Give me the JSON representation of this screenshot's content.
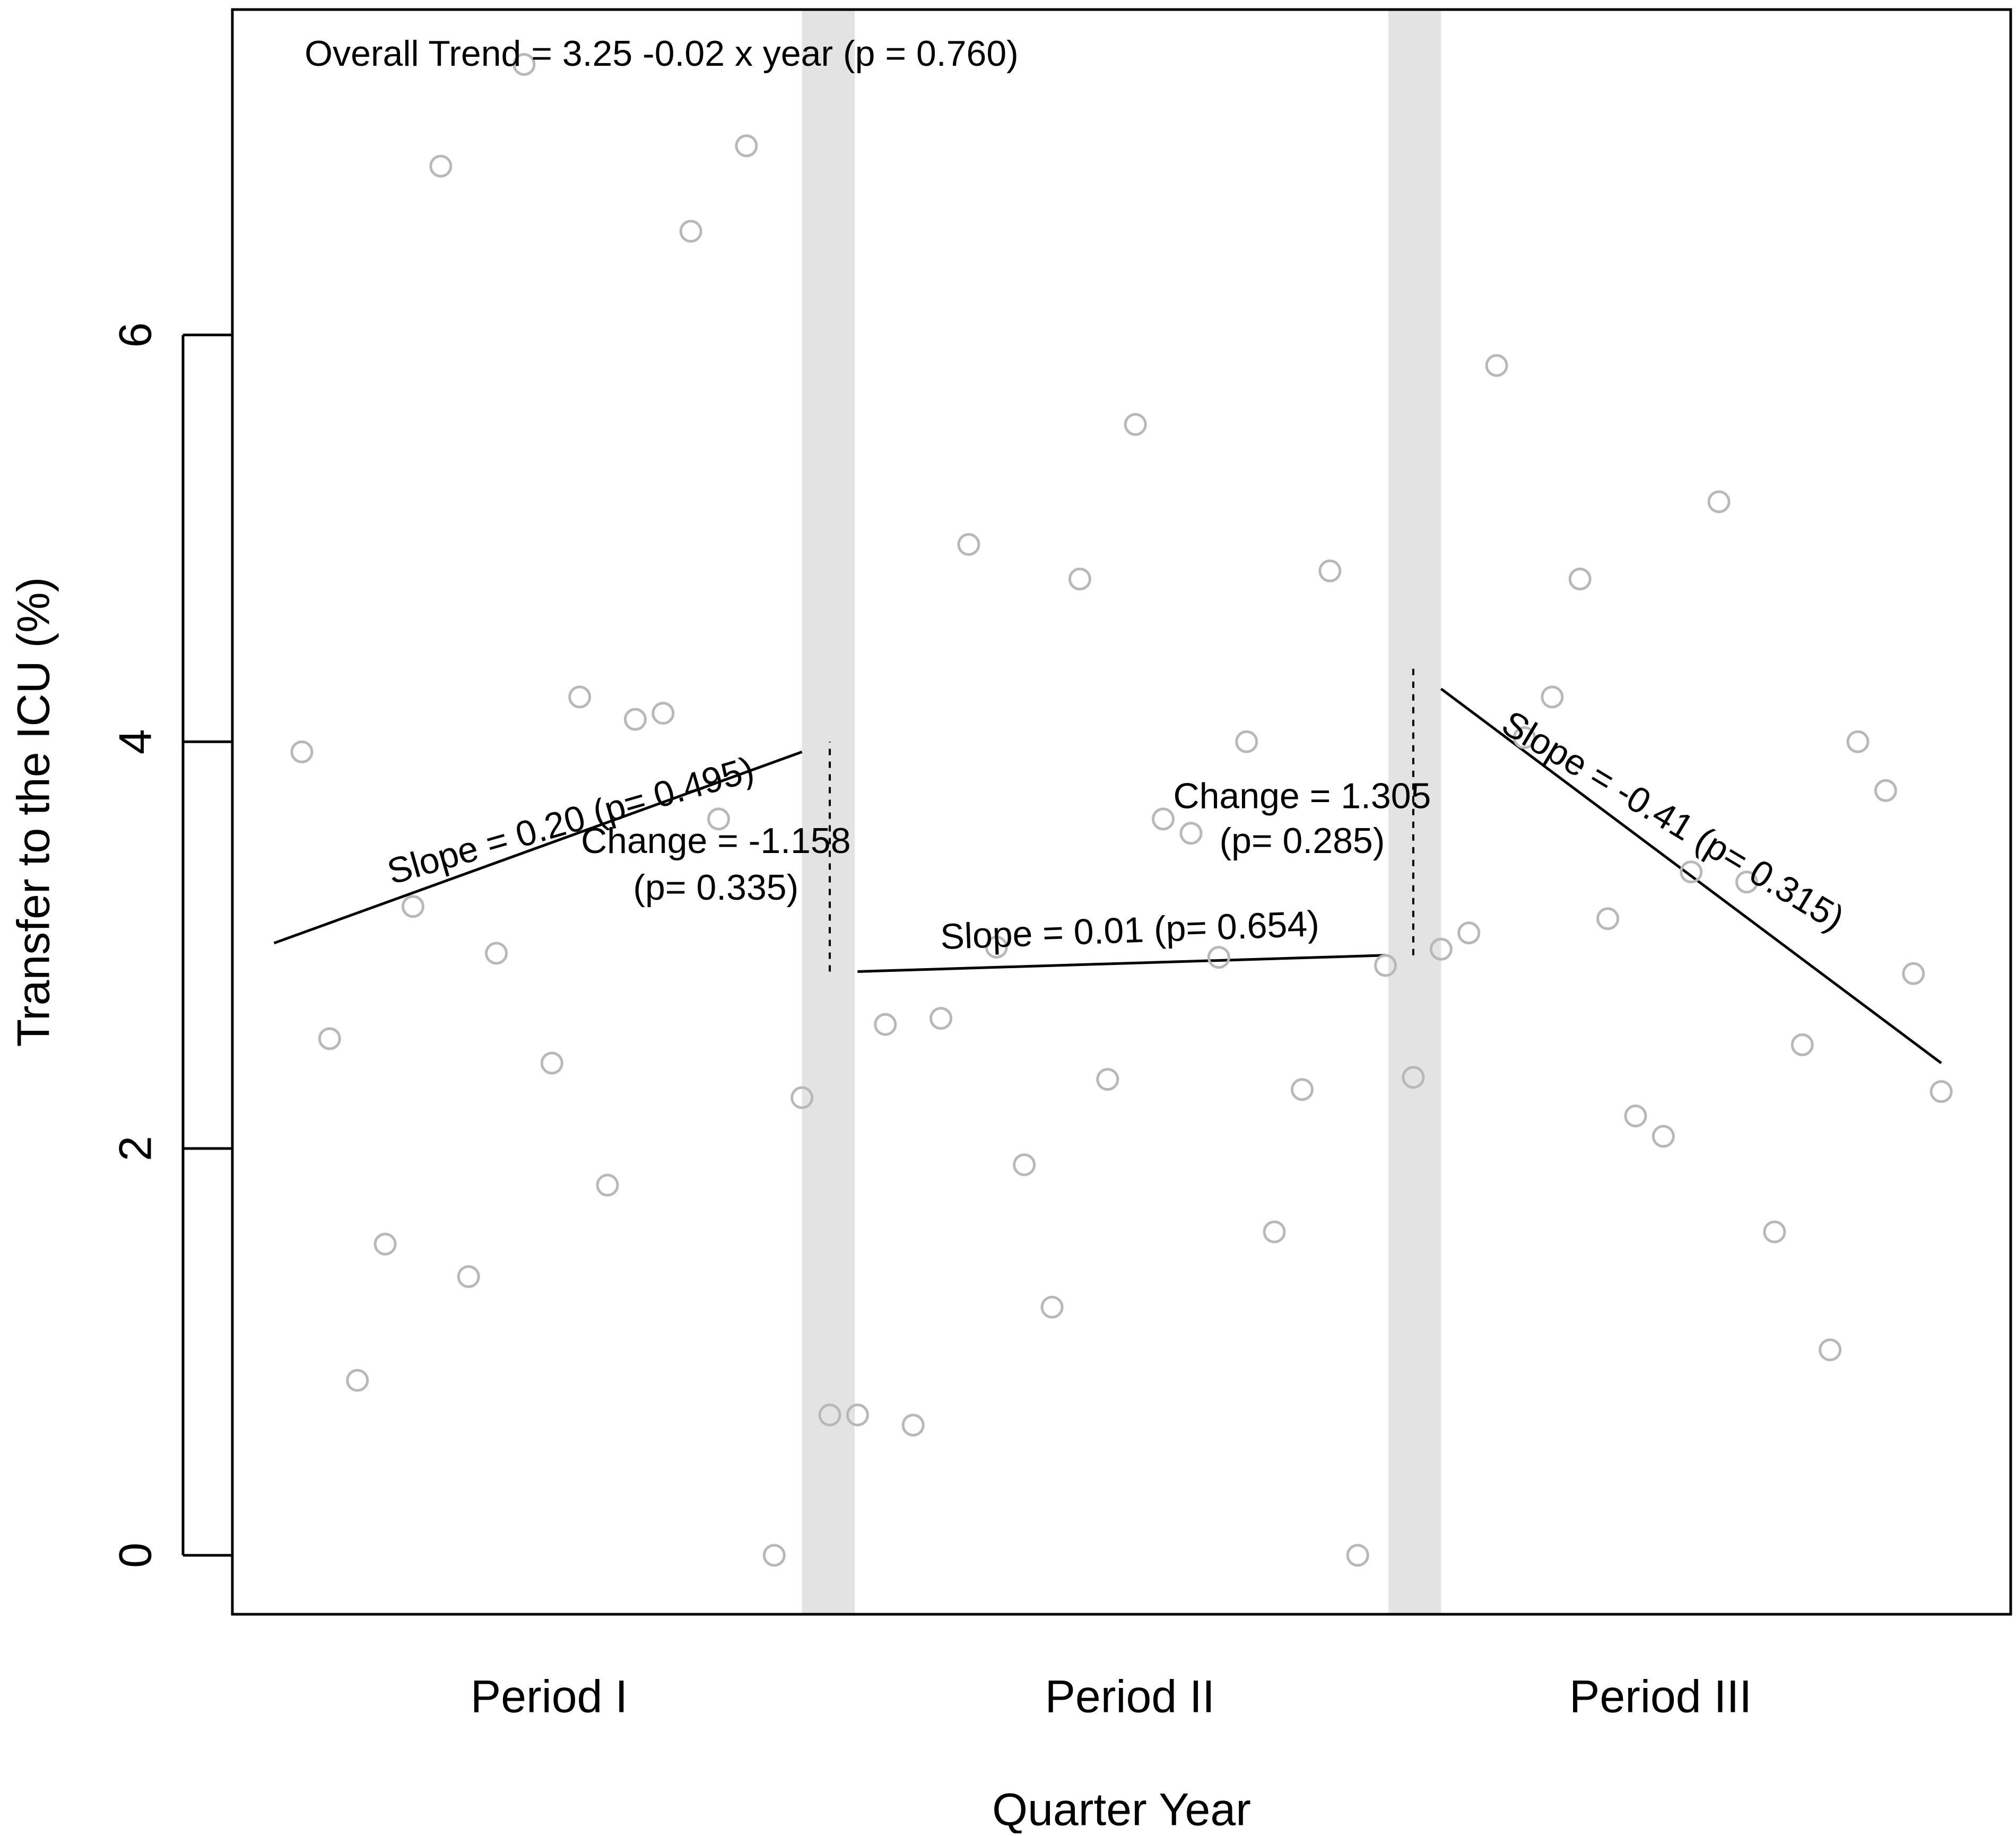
{
  "chart_data": {
    "type": "scatter",
    "xlabel": "Quarter Year",
    "ylabel": "Transfer to the ICU (%)",
    "ylim": [
      -0.29,
      7.6
    ],
    "yticks": [
      0,
      2,
      4,
      6
    ],
    "xlim": [
      0.5,
      64.5
    ],
    "x_axis_labels": [
      {
        "label": "Period I",
        "x": 11.9
      },
      {
        "label": "Period II",
        "x": 32.8
      },
      {
        "label": "Period III",
        "x": 51.9
      }
    ],
    "phase_bands": [
      {
        "x_start": 21.0,
        "x_end": 22.9
      },
      {
        "x_start": 42.1,
        "x_end": 44.0
      }
    ],
    "points": [
      {
        "x": 3,
        "y": 3.95
      },
      {
        "x": 4,
        "y": 2.54
      },
      {
        "x": 5,
        "y": 0.86
      },
      {
        "x": 6,
        "y": 1.53
      },
      {
        "x": 7,
        "y": 3.19
      },
      {
        "x": 8,
        "y": 6.83
      },
      {
        "x": 9,
        "y": 1.37
      },
      {
        "x": 10,
        "y": 2.96
      },
      {
        "x": 11,
        "y": 7.33
      },
      {
        "x": 12,
        "y": 2.42
      },
      {
        "x": 13,
        "y": 4.22
      },
      {
        "x": 14,
        "y": 1.82
      },
      {
        "x": 15,
        "y": 4.11
      },
      {
        "x": 16,
        "y": 4.14
      },
      {
        "x": 17,
        "y": 6.51
      },
      {
        "x": 18,
        "y": 3.62
      },
      {
        "x": 19,
        "y": 6.93
      },
      {
        "x": 20,
        "y": 0.0
      },
      {
        "x": 21,
        "y": 2.25
      },
      {
        "x": 22,
        "y": 0.69
      },
      {
        "x": 23,
        "y": 0.69
      },
      {
        "x": 24,
        "y": 2.61
      },
      {
        "x": 25,
        "y": 0.64
      },
      {
        "x": 26,
        "y": 2.64
      },
      {
        "x": 27,
        "y": 4.97
      },
      {
        "x": 28,
        "y": 2.99
      },
      {
        "x": 29,
        "y": 1.92
      },
      {
        "x": 30,
        "y": 1.22
      },
      {
        "x": 31,
        "y": 4.8
      },
      {
        "x": 32,
        "y": 2.34
      },
      {
        "x": 33,
        "y": 5.56
      },
      {
        "x": 34,
        "y": 3.62
      },
      {
        "x": 35,
        "y": 3.55
      },
      {
        "x": 36,
        "y": 2.94
      },
      {
        "x": 37,
        "y": 4.0
      },
      {
        "x": 38,
        "y": 1.59
      },
      {
        "x": 39,
        "y": 2.29
      },
      {
        "x": 40,
        "y": 4.84
      },
      {
        "x": 41,
        "y": 0.0
      },
      {
        "x": 42,
        "y": 2.9
      },
      {
        "x": 43,
        "y": 2.35
      },
      {
        "x": 44,
        "y": 2.98
      },
      {
        "x": 45,
        "y": 3.06
      },
      {
        "x": 46,
        "y": 5.85
      },
      {
        "x": 47,
        "y": 4.02
      },
      {
        "x": 48,
        "y": 4.22
      },
      {
        "x": 49,
        "y": 4.8
      },
      {
        "x": 50,
        "y": 3.13
      },
      {
        "x": 51,
        "y": 2.16
      },
      {
        "x": 52,
        "y": 2.06
      },
      {
        "x": 53,
        "y": 3.36
      },
      {
        "x": 54,
        "y": 5.18
      },
      {
        "x": 55,
        "y": 3.31
      },
      {
        "x": 56,
        "y": 1.59
      },
      {
        "x": 57,
        "y": 2.51
      },
      {
        "x": 58,
        "y": 1.01
      },
      {
        "x": 59,
        "y": 4.0
      },
      {
        "x": 60,
        "y": 3.76
      },
      {
        "x": 61,
        "y": 2.86
      },
      {
        "x": 62,
        "y": 2.28
      }
    ],
    "trend_lines": [
      {
        "x0": 2.0,
        "y0": 3.01,
        "x1": 21.0,
        "y1": 3.95
      },
      {
        "x0": 23.0,
        "y0": 2.87,
        "x1": 42.0,
        "y1": 2.95
      },
      {
        "x0": 44.0,
        "y0": 4.26,
        "x1": 62.0,
        "y1": 2.42
      }
    ],
    "change_markers": [
      {
        "x": 22,
        "y0": 2.87,
        "y1": 4.0
      },
      {
        "x": 43,
        "y0": 2.95,
        "y1": 4.39
      }
    ],
    "annotations": [
      {
        "text": "Overall Trend = 3.25 -0.02 x year (p = 0.760)",
        "x": 3.1,
        "y": 7.37,
        "angle": 0,
        "anchor": "start"
      },
      {
        "text": "Slope = 0.20 (p= 0.495)",
        "x": 12.7,
        "y": 3.6,
        "angle": -16,
        "anchor": "middle"
      },
      {
        "text": "Change = -1.158",
        "x": 17.9,
        "y": 3.5,
        "angle": 0,
        "anchor": "middle"
      },
      {
        "text": "(p= 0.335)",
        "x": 17.9,
        "y": 3.27,
        "angle": 0,
        "anchor": "middle"
      },
      {
        "text": "Slope = 0.01 (p= 0.654)",
        "x": 32.8,
        "y": 3.06,
        "angle": -2,
        "anchor": "middle"
      },
      {
        "text": "Change =  1.305",
        "x": 39.0,
        "y": 3.72,
        "angle": 0,
        "anchor": "middle"
      },
      {
        "text": "(p= 0.285)",
        "x": 39.0,
        "y": 3.5,
        "angle": 0,
        "anchor": "middle"
      },
      {
        "text": "Slope = -0.41 (p= 0.315)",
        "x": 52.3,
        "y": 3.6,
        "angle": 31,
        "anchor": "middle"
      }
    ],
    "colors": {
      "point_stroke": "#b8b8b8",
      "band_fill": "#e3e3e3",
      "line": "#000000",
      "axis": "#000000"
    }
  }
}
